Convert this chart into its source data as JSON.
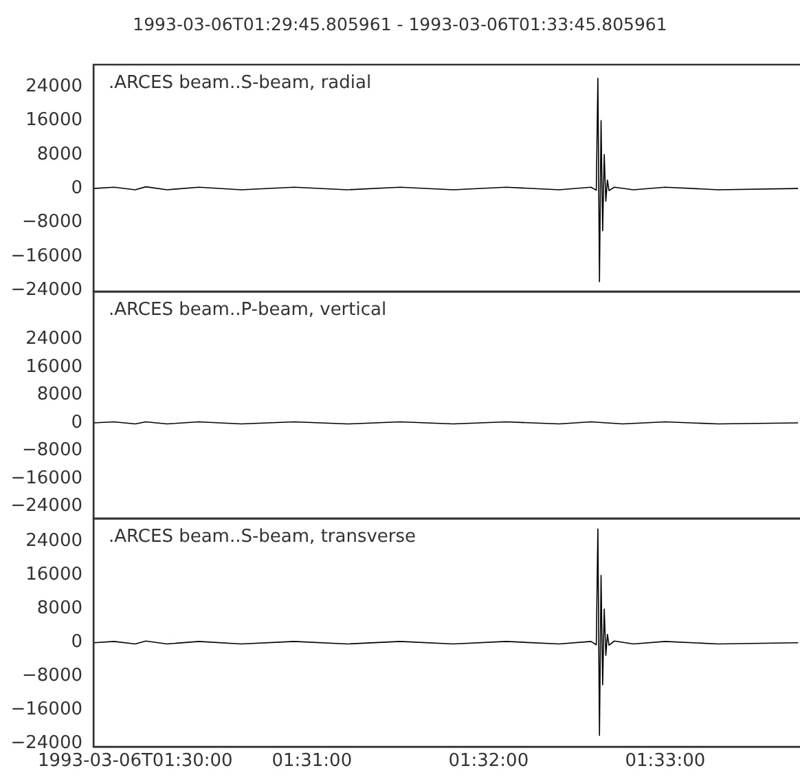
{
  "chart_data": [
    {
      "type": "line",
      "title": "1993-03-06T01:29:45.805961  -  1993-03-06T01:33:45.805961",
      "annotations": [
        ".ARCES beam..S-beam, radial"
      ],
      "tick_labels": "y",
      "grid": false,
      "legend": false,
      "marker": "none",
      "line_style": "solid",
      "xlim": [
        1.49606,
        1.56272
      ],
      "ylim": [
        -24300,
        29200
      ],
      "yticks": [
        -24000,
        -16000,
        -8000,
        0,
        8000,
        16000,
        24000
      ],
      "series": [
        {
          "color": "#000000",
          "x": [
            1.49606,
            1.498,
            1.5,
            1.501,
            1.503,
            1.506,
            1.51,
            1.515,
            1.52,
            1.525,
            1.53,
            1.535,
            1.54,
            1.543,
            1.5435,
            1.54365,
            1.5438,
            1.54395,
            1.5441,
            1.54425,
            1.5444,
            1.54455,
            1.5447,
            1.5452,
            1.547,
            1.55,
            1.555,
            1.5625
          ],
          "values": [
            0,
            300,
            -300,
            400,
            -300,
            300,
            -300,
            300,
            -300,
            300,
            -300,
            300,
            -300,
            300,
            -400,
            26000,
            -22000,
            16000,
            -10000,
            8000,
            -3000,
            2000,
            -500,
            300,
            -300,
            300,
            -300,
            0
          ]
        }
      ]
    },
    {
      "type": "line",
      "annotations": [
        ".ARCES beam..P-beam, vertical"
      ],
      "tick_labels": "y",
      "grid": false,
      "legend": false,
      "marker": "none",
      "line_style": "solid",
      "xlim": [
        1.49606,
        1.56272
      ],
      "ylim": [
        -27500,
        37800
      ],
      "yticks": [
        -24000,
        -16000,
        -8000,
        0,
        8000,
        16000,
        24000
      ],
      "series": [
        {
          "color": "#000000",
          "x": [
            1.49606,
            1.498,
            1.5,
            1.501,
            1.503,
            1.506,
            1.51,
            1.515,
            1.52,
            1.525,
            1.53,
            1.535,
            1.54,
            1.543,
            1.546,
            1.55,
            1.555,
            1.5625
          ],
          "values": [
            0,
            300,
            -300,
            300,
            -300,
            300,
            -300,
            300,
            -300,
            300,
            -300,
            300,
            -300,
            300,
            -300,
            300,
            -300,
            0
          ]
        }
      ]
    },
    {
      "type": "line",
      "annotations": [
        ".ARCES beam..S-beam, transverse"
      ],
      "grid": false,
      "legend": false,
      "marker": "none",
      "line_style": "solid",
      "xlim": [
        1.49606,
        1.56272
      ],
      "xticks": [
        {
          "value": 1.5,
          "label": "1993-03-06T01:30:00"
        },
        {
          "value": 1.516667,
          "label": "01:31:00"
        },
        {
          "value": 1.533333,
          "label": "01:32:00"
        },
        {
          "value": 1.55,
          "label": "01:33:00"
        }
      ],
      "ylim": [
        -24700,
        29500
      ],
      "yticks": [
        -24000,
        -16000,
        -8000,
        0,
        8000,
        16000,
        24000
      ],
      "series": [
        {
          "color": "#000000",
          "x": [
            1.49606,
            1.498,
            1.5,
            1.501,
            1.503,
            1.506,
            1.51,
            1.515,
            1.52,
            1.525,
            1.53,
            1.535,
            1.54,
            1.543,
            1.5435,
            1.54365,
            1.5438,
            1.54395,
            1.5441,
            1.54425,
            1.5444,
            1.54455,
            1.5447,
            1.5452,
            1.547,
            1.55,
            1.555,
            1.5625
          ],
          "values": [
            0,
            300,
            -300,
            400,
            -300,
            300,
            -300,
            300,
            -300,
            300,
            -300,
            300,
            -300,
            300,
            -500,
            27000,
            -22000,
            16000,
            -10000,
            8000,
            -3000,
            2000,
            -600,
            400,
            -300,
            300,
            -300,
            0
          ]
        }
      ]
    }
  ]
}
